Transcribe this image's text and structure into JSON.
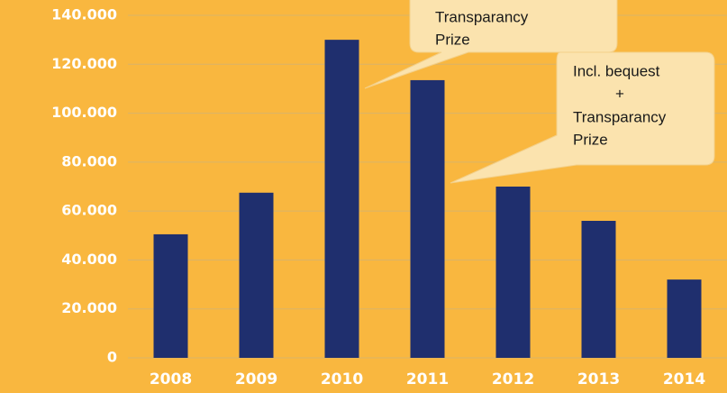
{
  "chart_data": {
    "type": "bar",
    "categories": [
      "2008",
      "2009",
      "2010",
      "2011",
      "2012",
      "2013",
      "2014"
    ],
    "values": [
      50500,
      67500,
      130000,
      113500,
      70000,
      56000,
      32000
    ],
    "color": "#1f2f6e",
    "ylim": [
      0,
      140000
    ],
    "yticks": [
      0,
      {
        "value": 20000,
        "label": "20.000"
      },
      {
        "value": 40000,
        "label": "40.000"
      },
      {
        "value": 60000,
        "label": "60.000"
      },
      {
        "value": 80000,
        "label": "80.000"
      },
      {
        "value": 100000,
        "label": "100.000"
      },
      {
        "value": 120000,
        "label": "120.000"
      },
      {
        "value": 140000,
        "label": "140.000"
      }
    ],
    "grid": true,
    "annotations": [
      {
        "lines": [
          "Transparancy",
          "Prize"
        ]
      },
      {
        "lines": [
          "Incl. bequest",
          "+",
          "Transparancy",
          "Prize"
        ]
      }
    ]
  }
}
